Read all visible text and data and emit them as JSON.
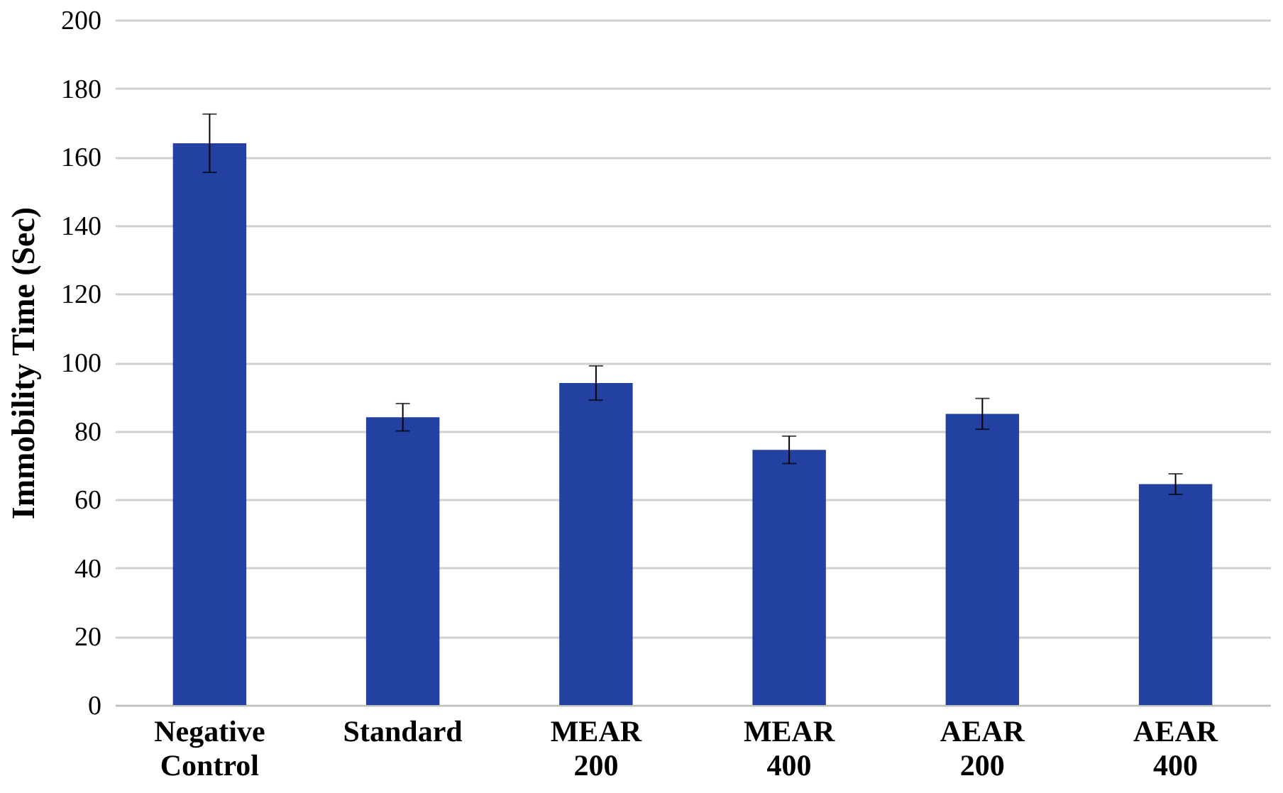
{
  "chart_data": {
    "type": "bar",
    "ylabel": "Immobility Time (Sec)",
    "categories": [
      "Negative Control",
      "Standard",
      "MEAR 200",
      "MEAR 400",
      "AEAR 200",
      "AEAR 400"
    ],
    "values": [
      164,
      84,
      94,
      74.5,
      85,
      64.5
    ],
    "errors": [
      8.5,
      4,
      5,
      4,
      4.5,
      3
    ],
    "color": "#2341a0",
    "ylim": [
      0,
      200
    ],
    "yticks": [
      0,
      20,
      40,
      60,
      80,
      100,
      120,
      140,
      160,
      180,
      200
    ],
    "grid": "y"
  }
}
